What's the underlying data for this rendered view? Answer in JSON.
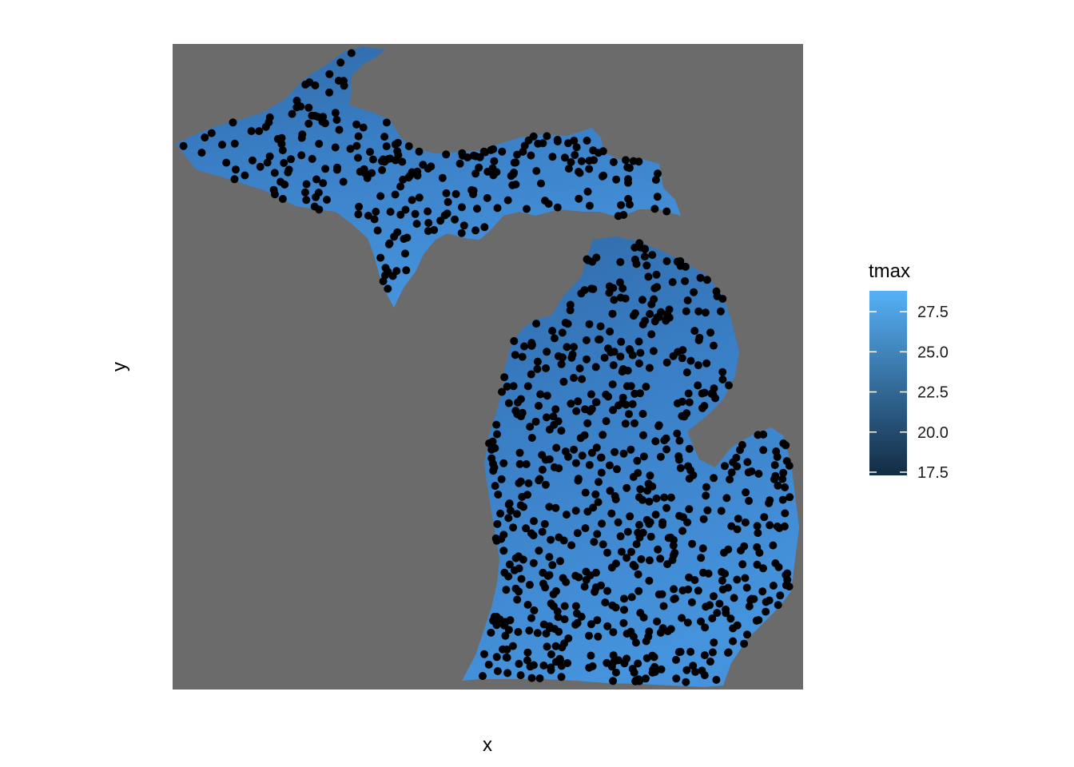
{
  "chart_data": {
    "type": "raster-map",
    "xlabel": "x",
    "ylabel": "y",
    "legend": {
      "title": "tmax",
      "placement": "right",
      "low_color": "#132B43",
      "high_color": "#56B1F7",
      "range": [
        17.3,
        28.8
      ],
      "ticks": [
        17.5,
        20.0,
        22.5,
        25.0,
        27.5
      ],
      "tick_labels": [
        "17.5",
        "20.0",
        "22.5",
        "25.0",
        "27.5"
      ]
    },
    "panel_background": "#6b6b6b",
    "points_color": "#000000",
    "grid": false
  }
}
